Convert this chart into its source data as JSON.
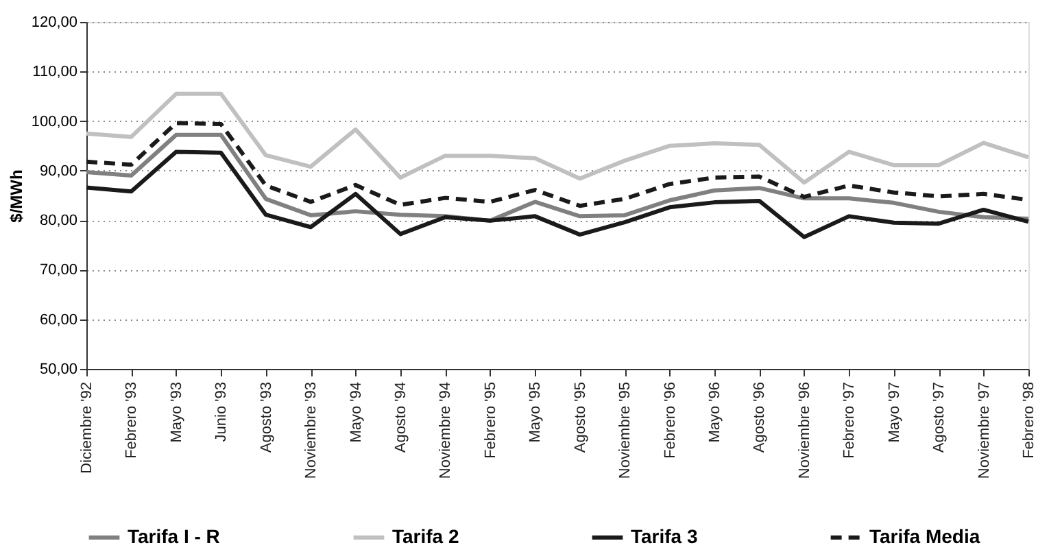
{
  "chart_data": {
    "type": "line",
    "ylabel": "$/MWh",
    "categories": [
      "Diciembre '92",
      "Febrero '93",
      "Mayo '93",
      "Junio '93",
      "Agosto '93",
      "Noviembre '93",
      "Mayo '94",
      "Agosto '94",
      "Noviembre '94",
      "Febrero '95",
      "Mayo '95",
      "Agosto '95",
      "Noviembre '95",
      "Febrero '96",
      "Mayo  '96",
      "Agosto '96",
      "Noviembre '96",
      "Febrero '97",
      "Mayo  '97",
      "Agosto '97",
      "Noviembre '97",
      "Febrero '98"
    ],
    "series": [
      {
        "name": "Tarifa I - R",
        "color": "#808080",
        "line_style": "solid",
        "values": [
          89.7,
          89.0,
          97.2,
          97.2,
          84.3,
          81.0,
          81.8,
          81.1,
          80.8,
          79.9,
          83.7,
          80.8,
          81.0,
          84.0,
          86.0,
          86.5,
          84.4,
          84.4,
          83.5,
          81.7,
          80.6,
          80.3
        ]
      },
      {
        "name": "Tarifa 2",
        "color": "#c0c0c0",
        "line_style": "solid",
        "values": [
          97.5,
          96.8,
          105.5,
          105.5,
          93.1,
          90.8,
          98.3,
          88.6,
          93.0,
          93.0,
          92.5,
          88.4,
          92.0,
          95.0,
          95.5,
          95.2,
          87.6,
          93.8,
          91.1,
          91.1,
          95.6,
          92.7
        ]
      },
      {
        "name": "Tarifa 3",
        "color": "#1a1a1a",
        "line_style": "solid",
        "values": [
          86.6,
          85.8,
          93.8,
          93.6,
          81.1,
          78.6,
          85.3,
          77.2,
          80.6,
          79.9,
          80.8,
          77.1,
          79.6,
          82.6,
          83.6,
          83.9,
          76.6,
          80.8,
          79.5,
          79.3,
          82.1,
          79.7
        ]
      },
      {
        "name": "Tarifa Media",
        "color": "#1a1a1a",
        "line_style": "dashed",
        "values": [
          91.8,
          91.2,
          99.6,
          99.4,
          87.0,
          83.7,
          87.1,
          83.1,
          84.5,
          83.7,
          86.1,
          82.9,
          84.3,
          87.3,
          88.6,
          88.8,
          84.7,
          87.0,
          85.6,
          84.8,
          85.3,
          84.1
        ]
      }
    ],
    "ylim": [
      50,
      120
    ],
    "yticks": [
      {
        "value": 50,
        "label": "50,00"
      },
      {
        "value": 60,
        "label": "60,00"
      },
      {
        "value": 70,
        "label": "70,00"
      },
      {
        "value": 80,
        "label": "80,00"
      },
      {
        "value": 90,
        "label": "90,00"
      },
      {
        "value": 100,
        "label": "100,00"
      },
      {
        "value": 110,
        "label": "110,00"
      },
      {
        "value": 120,
        "label": "120,00"
      }
    ],
    "grid": "y",
    "legend": "bottom"
  }
}
